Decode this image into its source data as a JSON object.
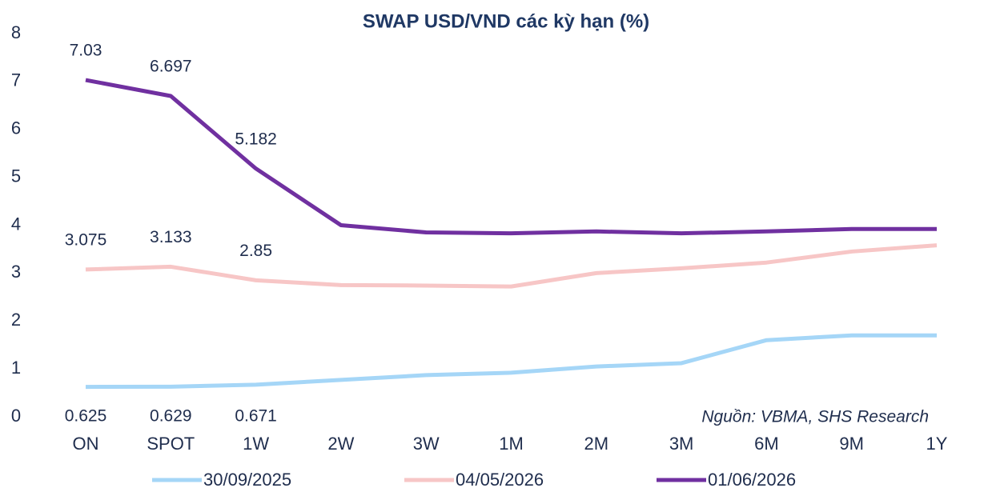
{
  "chart_data": {
    "type": "line",
    "title": "SWAP USD/VND các kỳ hạn (%)",
    "annotation": "Nguồn: VBMA, SHS Research",
    "categories": [
      "ON",
      "SPOT",
      "1W",
      "2W",
      "3W",
      "1M",
      "2M",
      "3M",
      "6M",
      "9M",
      "1Y"
    ],
    "series": [
      {
        "name": "30/09/2025",
        "color": "#a5d6f7",
        "label_position": "below",
        "values": [
          0.625,
          0.629,
          0.671,
          0.77,
          0.87,
          0.92,
          1.05,
          1.12,
          1.6,
          1.7,
          1.7
        ],
        "value_labels": [
          "0.625",
          "0.629",
          "0.671",
          null,
          null,
          null,
          null,
          null,
          null,
          null,
          null
        ]
      },
      {
        "name": "04/05/2026",
        "color": "#f7c6c6",
        "label_position": "above",
        "values": [
          3.075,
          3.133,
          2.85,
          2.75,
          2.74,
          2.72,
          3.0,
          3.1,
          3.22,
          3.45,
          3.58
        ],
        "value_labels": [
          "3.075",
          "3.133",
          "2.85",
          null,
          null,
          null,
          null,
          null,
          null,
          null,
          null
        ]
      },
      {
        "name": "01/06/2026",
        "color": "#7030a0",
        "label_position": "above",
        "values": [
          7.03,
          6.697,
          5.182,
          4.0,
          3.85,
          3.83,
          3.87,
          3.83,
          3.87,
          3.92,
          3.92
        ],
        "value_labels": [
          "7.03",
          "6.697",
          "5.182",
          null,
          null,
          null,
          null,
          null,
          null,
          null,
          null
        ]
      }
    ],
    "ylim": [
      0,
      8
    ],
    "yticks": [
      0,
      1,
      2,
      3,
      4,
      5,
      6,
      7,
      8
    ],
    "grid": false,
    "legend": "bottom"
  }
}
